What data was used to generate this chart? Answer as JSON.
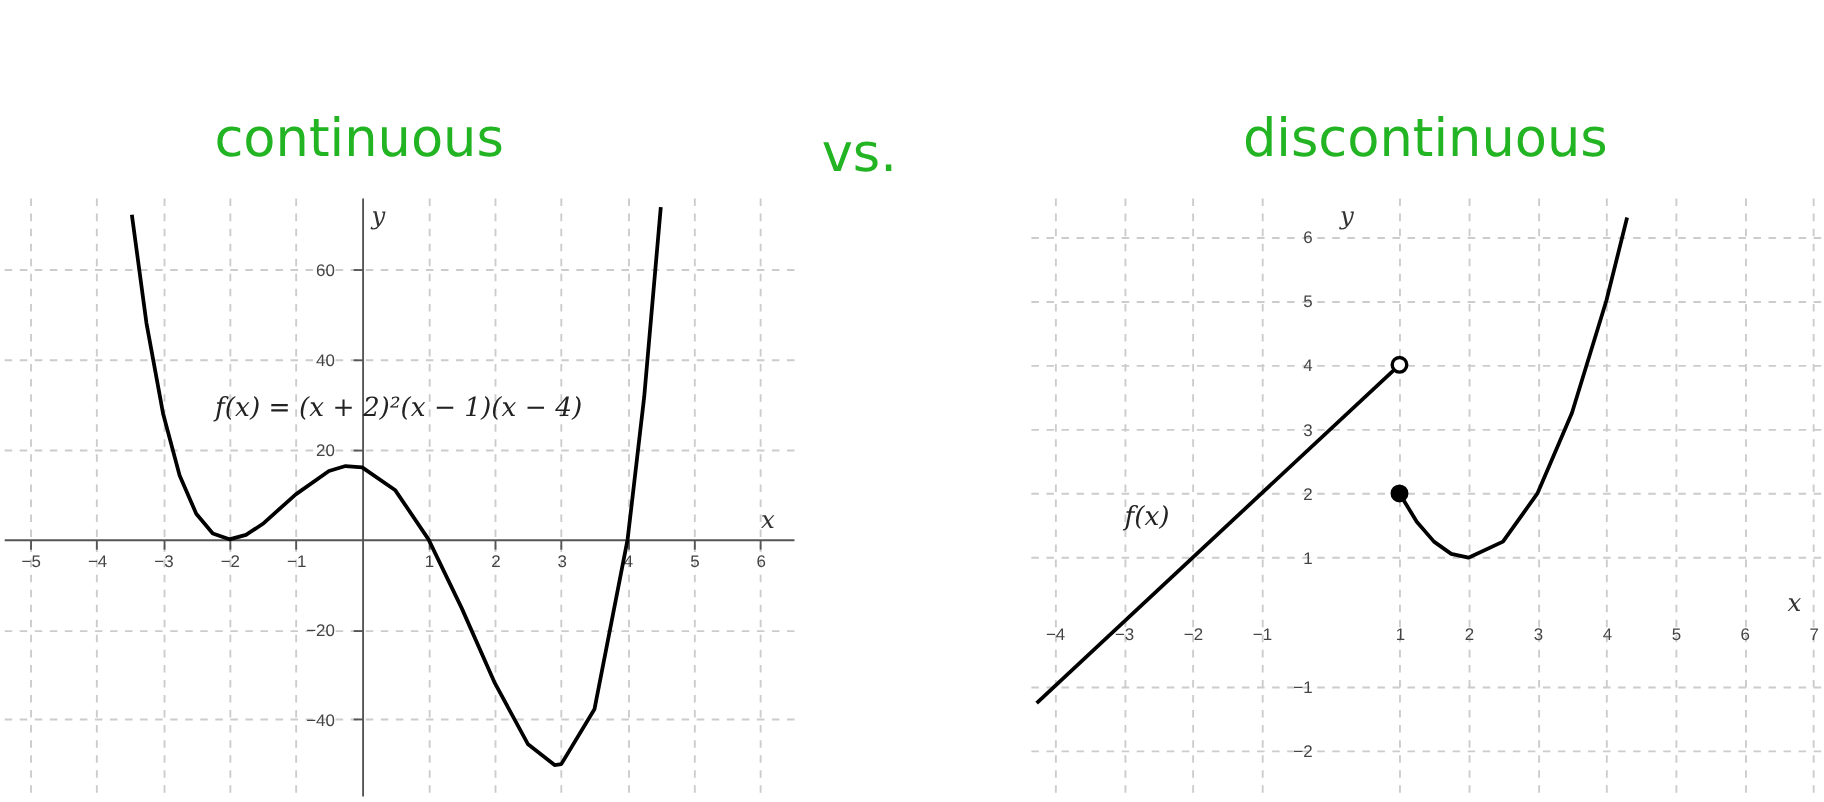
{
  "chart_data": [
    {
      "type": "line",
      "title": "continuous",
      "xlabel": "x",
      "ylabel": "y",
      "xlim": [
        -5.4,
        6.5
      ],
      "ylim": [
        -57,
        76
      ],
      "xticks": [
        -5,
        -4,
        -3,
        -2,
        -1,
        1,
        2,
        3,
        4,
        5,
        6
      ],
      "yticks": [
        -40,
        -20,
        20,
        40,
        60
      ],
      "grid": true,
      "annotations": [
        "vs.",
        "f(x) = (x + 2)²(x − 1)(x − 4)"
      ],
      "series": [
        {
          "color": "#000000",
          "x": [
            -3.47,
            -3.25,
            -3,
            -2.75,
            -2.5,
            -2.25,
            -2,
            -1.75,
            -1.5,
            -1,
            -0.5,
            -0.25,
            0,
            0.5,
            1,
            1.5,
            2,
            2.5,
            2.9,
            3,
            3.5,
            4,
            4.25,
            4.5
          ],
          "values": [
            72.2,
            48.1,
            28,
            14.2,
            5.7,
            1.3,
            0,
            1,
            3.4,
            10,
            15.2,
            16.3,
            16,
            10.9,
            0,
            -15.3,
            -32,
            -45.6,
            -50.2,
            -50,
            -37.8,
            0,
            31.7,
            73.9
          ]
        }
      ]
    },
    {
      "type": "line",
      "title": "discontinuous",
      "xlabel": "x",
      "ylabel": "y",
      "xlim": [
        -4.35,
        7.1
      ],
      "ylim": [
        -2.7,
        6.6
      ],
      "xticks": [
        -4,
        -3,
        -2,
        -1,
        1,
        2,
        3,
        4,
        5,
        6,
        7
      ],
      "yticks": [
        -2,
        -1,
        1,
        2,
        3,
        4,
        5,
        6
      ],
      "grid": true,
      "annotations": [
        "f(x)"
      ],
      "series": [
        {
          "type": "line",
          "color": "#000000",
          "x": [
            -4.26,
            1
          ],
          "values": [
            -1.26,
            4
          ]
        },
        {
          "type": "line",
          "color": "#000000",
          "x": [
            1,
            1.25,
            1.5,
            1.75,
            2,
            2.5,
            3,
            3.5,
            4,
            4.3
          ],
          "values": [
            2,
            1.56,
            1.25,
            1.06,
            1,
            1.25,
            2,
            3.25,
            5,
            6.29
          ]
        },
        {
          "type": "scatter",
          "marker": "circle",
          "color": "#ffffff",
          "x": [
            1
          ],
          "values": [
            4
          ]
        },
        {
          "type": "scatter",
          "marker": "circle",
          "color": "#000000",
          "x": [
            1
          ],
          "values": [
            2
          ]
        }
      ]
    }
  ]
}
